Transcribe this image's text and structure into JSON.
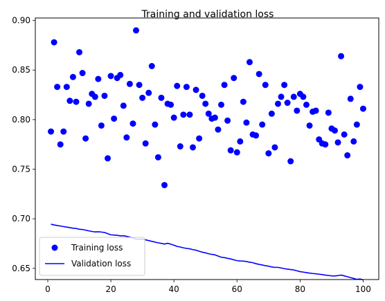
{
  "chart_data": {
    "type": "line",
    "title": "Training and validation loss",
    "xlabel": "",
    "ylabel": "",
    "xlim": [
      -3.95,
      104.95
    ],
    "ylim": [
      0.6387,
      0.9025
    ],
    "x_ticks": [
      0,
      20,
      40,
      60,
      80,
      100
    ],
    "y_ticks": [
      0.65,
      0.7,
      0.75,
      0.8,
      0.85,
      0.9
    ],
    "x_tick_labels": [
      "0",
      "20",
      "40",
      "60",
      "80",
      "100"
    ],
    "y_tick_labels": [
      "0.65",
      "0.70",
      "0.75",
      "0.80",
      "0.85",
      "0.90"
    ],
    "grid": false,
    "legend_position": "lower-left",
    "series": [
      {
        "name": "Training loss",
        "style": "points",
        "color": "#0000ff",
        "x": [
          1,
          2,
          3,
          4,
          5,
          6,
          7,
          8,
          9,
          10,
          11,
          12,
          13,
          14,
          15,
          16,
          17,
          18,
          19,
          20,
          21,
          22,
          23,
          24,
          25,
          26,
          27,
          28,
          29,
          30,
          31,
          32,
          33,
          34,
          35,
          36,
          37,
          38,
          39,
          40,
          41,
          42,
          43,
          44,
          45,
          46,
          47,
          48,
          49,
          50,
          51,
          52,
          53,
          54,
          55,
          56,
          57,
          58,
          59,
          60,
          61,
          62,
          63,
          64,
          65,
          66,
          67,
          68,
          69,
          70,
          71,
          72,
          73,
          74,
          75,
          76,
          77,
          78,
          79,
          80,
          81,
          82,
          83,
          84,
          85,
          86,
          87,
          88,
          89,
          90,
          91,
          92,
          93,
          94,
          95,
          96,
          97,
          98,
          99,
          100
        ],
        "values": [
          0.788,
          0.878,
          0.833,
          0.775,
          0.788,
          0.833,
          0.819,
          0.843,
          0.818,
          0.868,
          0.847,
          0.781,
          0.816,
          0.826,
          0.823,
          0.841,
          0.794,
          0.824,
          0.761,
          0.844,
          0.801,
          0.842,
          0.845,
          0.814,
          0.782,
          0.836,
          0.796,
          0.89,
          0.835,
          0.822,
          0.776,
          0.827,
          0.854,
          0.795,
          0.762,
          0.822,
          0.734,
          0.816,
          0.815,
          0.802,
          0.834,
          0.773,
          0.805,
          0.833,
          0.805,
          0.772,
          0.83,
          0.781,
          0.824,
          0.816,
          0.806,
          0.801,
          0.802,
          0.79,
          0.815,
          0.835,
          0.799,
          0.769,
          0.842,
          0.767,
          0.778,
          0.818,
          0.797,
          0.858,
          0.785,
          0.784,
          0.846,
          0.795,
          0.835,
          0.766,
          0.806,
          0.772,
          0.816,
          0.823,
          0.835,
          0.817,
          0.758,
          0.823,
          0.809,
          0.826,
          0.823,
          0.815,
          0.794,
          0.808,
          0.809,
          0.78,
          0.776,
          0.775,
          0.807,
          0.791,
          0.789,
          0.777,
          0.864,
          0.785,
          0.764,
          0.821,
          0.778,
          0.795,
          0.833,
          0.811
        ]
      },
      {
        "name": "Validation loss",
        "style": "line",
        "color": "#0000ff",
        "x": [
          1,
          2,
          3,
          4,
          5,
          6,
          7,
          8,
          9,
          10,
          11,
          12,
          13,
          14,
          15,
          16,
          17,
          18,
          19,
          20,
          21,
          22,
          23,
          24,
          25,
          26,
          27,
          28,
          29,
          30,
          31,
          32,
          33,
          34,
          35,
          36,
          37,
          38,
          39,
          40,
          41,
          42,
          43,
          44,
          45,
          46,
          47,
          48,
          49,
          50,
          51,
          52,
          53,
          54,
          55,
          56,
          57,
          58,
          59,
          60,
          61,
          62,
          63,
          64,
          65,
          66,
          67,
          68,
          69,
          70,
          71,
          72,
          73,
          74,
          75,
          76,
          77,
          78,
          79,
          80,
          81,
          82,
          83,
          84,
          85,
          86,
          87,
          88,
          89,
          90,
          91,
          92,
          93,
          94,
          95,
          96,
          97,
          98,
          99,
          100
        ],
        "values": [
          0.6945,
          0.6938,
          0.6932,
          0.6927,
          0.6921,
          0.6916,
          0.6911,
          0.6905,
          0.6902,
          0.6894,
          0.6892,
          0.6885,
          0.6878,
          0.6872,
          0.6867,
          0.6869,
          0.6866,
          0.6862,
          0.685,
          0.6838,
          0.6836,
          0.6833,
          0.6828,
          0.6829,
          0.6823,
          0.6816,
          0.6806,
          0.6796,
          0.6793,
          0.6795,
          0.6788,
          0.678,
          0.6772,
          0.6765,
          0.6757,
          0.6752,
          0.6745,
          0.6753,
          0.6744,
          0.6733,
          0.6721,
          0.6715,
          0.6707,
          0.6701,
          0.6697,
          0.6689,
          0.6683,
          0.6672,
          0.6663,
          0.6656,
          0.6647,
          0.6641,
          0.6636,
          0.6624,
          0.6612,
          0.6608,
          0.6601,
          0.6595,
          0.6586,
          0.6578,
          0.6574,
          0.6573,
          0.6569,
          0.6562,
          0.6557,
          0.6547,
          0.654,
          0.6534,
          0.6527,
          0.6522,
          0.6514,
          0.651,
          0.651,
          0.6504,
          0.6497,
          0.6492,
          0.6488,
          0.6484,
          0.6475,
          0.6467,
          0.6462,
          0.6457,
          0.6452,
          0.6448,
          0.6445,
          0.6441,
          0.6437,
          0.6432,
          0.6428,
          0.6424,
          0.6423,
          0.6427,
          0.6432,
          0.6424,
          0.6416,
          0.6406,
          0.6398,
          0.6389,
          0.6393,
          0.6384
        ]
      }
    ]
  }
}
